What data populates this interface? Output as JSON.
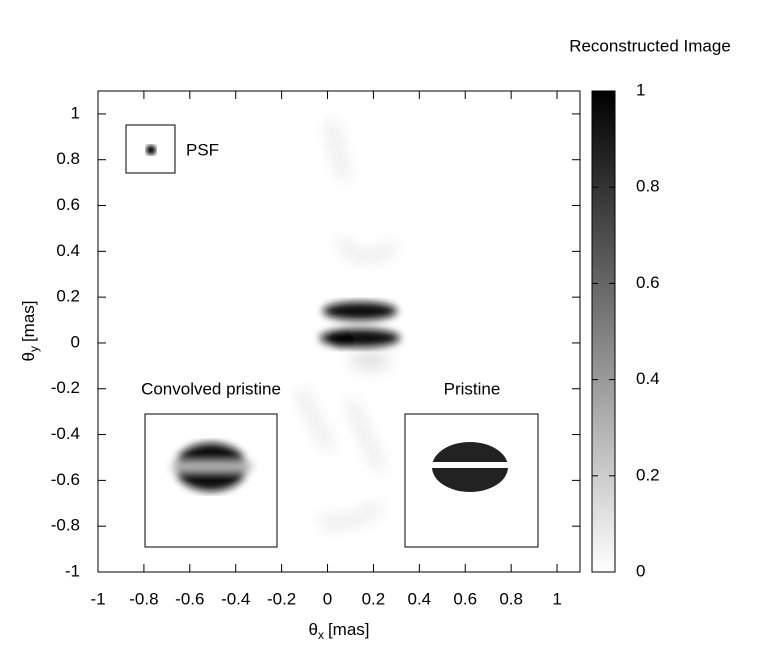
{
  "chart_data": {
    "type": "heatmap",
    "colorbar_title": "Reconstructed Image",
    "xlabel": {
      "symbol": "θ",
      "subscript": "x",
      "unit": "[mas]"
    },
    "ylabel": {
      "symbol": "θ",
      "subscript": "y",
      "unit": "[mas]"
    },
    "xlim": [
      -1,
      1.1
    ],
    "ylim": [
      -1,
      1.1
    ],
    "xticks": [
      -1,
      -0.8,
      -0.6,
      -0.4,
      -0.2,
      0,
      0.2,
      0.4,
      0.6,
      0.8,
      1
    ],
    "yticks": [
      -1,
      -0.8,
      -0.6,
      -0.4,
      -0.2,
      0,
      0.2,
      0.4,
      0.6,
      0.8,
      1
    ],
    "clim": [
      0,
      1
    ],
    "cticks": [
      0,
      0.2,
      0.4,
      0.6,
      0.8,
      1
    ],
    "colormap": [
      "#ffffff",
      "#000000"
    ],
    "annotations": {
      "psf": "PSF",
      "convolved": "Convolved pristine",
      "pristine": "Pristine"
    }
  }
}
